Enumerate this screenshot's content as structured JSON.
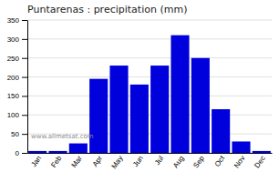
{
  "chart_data": {
    "type": "bar",
    "title": "Puntarenas : precipitation (mm)",
    "categories": [
      "Jan",
      "Feb",
      "Mar",
      "Apr",
      "May",
      "Jun",
      "Jul",
      "Aug",
      "Sep",
      "Oct",
      "Nov",
      "Dec"
    ],
    "values": [
      5,
      5,
      25,
      195,
      230,
      180,
      230,
      310,
      250,
      115,
      30,
      5
    ],
    "color": "#0000dd",
    "ylim": [
      0,
      350
    ],
    "yticks": [
      0,
      50,
      100,
      150,
      200,
      250,
      300,
      350
    ],
    "grid": true,
    "annotations": [
      "www.allmetsat.com"
    ]
  }
}
